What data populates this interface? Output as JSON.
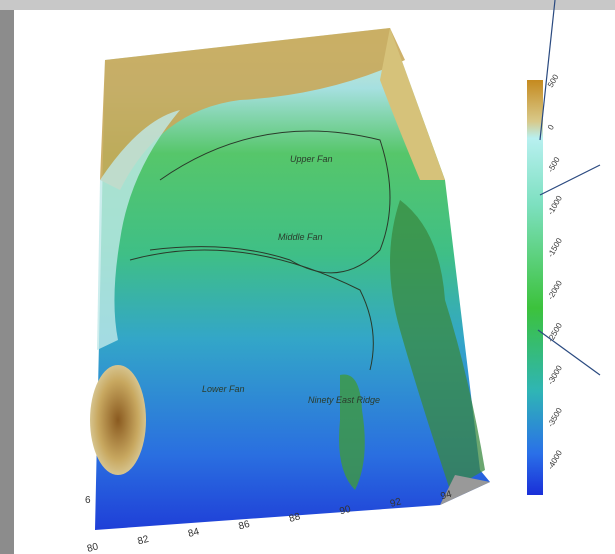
{
  "map": {
    "labels": [
      "Upper Fan",
      "Middle Fan",
      "Lower Fan",
      "Ninety East Ridge"
    ],
    "colorbar": {
      "ticks": [
        500,
        0,
        -500,
        -1000,
        -1500,
        -2000,
        -2500,
        -3000,
        -3500,
        -4000
      ]
    },
    "x_axis": {
      "ticks": [
        80,
        82,
        84,
        86,
        88,
        90,
        92,
        94
      ]
    },
    "y_axis": {
      "ticks": [
        6
      ]
    }
  }
}
